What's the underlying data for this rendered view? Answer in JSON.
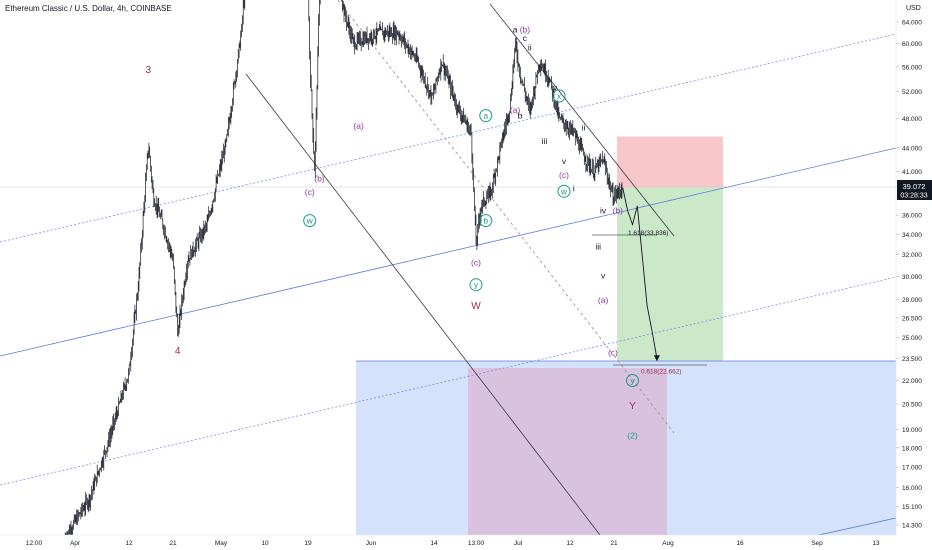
{
  "header": {
    "title": "Ethereum Classic / U.S. Dollar, 4h, COINBASE",
    "currency": "USD"
  },
  "price_marker": {
    "price": "39.072",
    "countdown": "03:28:33"
  },
  "colors": {
    "candle": "#131722",
    "channel_line": "#5b7ee0",
    "channel_dotted": "#7b8ee8",
    "trend_line": "#3a3a4a",
    "pink_dashed": "#c48a9a",
    "stop_zone": "#f8b8bd",
    "target_zone": "#b9e2b5",
    "target_box": "#c7d8fb",
    "overlap_box": "#d8bfdc",
    "wave_red": "#9c2d55",
    "wave_purple": "#8e3aa0",
    "wave_teal": "#1b9c88",
    "wave_black": "#131722",
    "price_tag": "#131722",
    "fib_text": "#9c2d55"
  },
  "chart_data": {
    "type": "candlestick",
    "title": "Ethereum Classic / U.S. Dollar, 4h, COINBASE",
    "y_axis": {
      "scale": "log",
      "unit": "USD",
      "ticks": [
        "64.000",
        "60.000",
        "56.000",
        "52.000",
        "48.000",
        "44.000",
        "41.000",
        "36.000",
        "34.000",
        "32.000",
        "30.000",
        "28.000",
        "26.500",
        "25.000",
        "23.500",
        "22.000",
        "20.500",
        "19.000",
        "18.000",
        "17.000",
        "16.000",
        "15.100",
        "14.300"
      ]
    },
    "x_axis": {
      "ticks": [
        "12:00",
        "Apr",
        "12",
        "21",
        "May",
        "10",
        "19",
        "Jun",
        "14",
        "13:00",
        "Jul",
        "12",
        "21",
        "Aug",
        "16",
        "Sep",
        "13"
      ]
    },
    "price_path": [
      {
        "date": "2021-03-30",
        "price": 13.8
      },
      {
        "date": "2021-04-04",
        "price": 15.5
      },
      {
        "date": "2021-04-08",
        "price": 18.5
      },
      {
        "date": "2021-04-12",
        "price": 22.5
      },
      {
        "date": "2021-04-14",
        "price": 29.5
      },
      {
        "date": "2021-04-16",
        "price": 44.5
      },
      {
        "date": "2021-04-17",
        "price": 38
      },
      {
        "date": "2021-04-19",
        "price": 35
      },
      {
        "date": "2021-04-21",
        "price": 31.5
      },
      {
        "date": "2021-04-22",
        "price": 25.3
      },
      {
        "date": "2021-04-24",
        "price": 31.5
      },
      {
        "date": "2021-04-28",
        "price": 35
      },
      {
        "date": "2021-05-02",
        "price": 45
      },
      {
        "date": "2021-05-05",
        "price": 62
      },
      {
        "date": "2021-05-07",
        "price": 90
      },
      {
        "date": "2021-05-12",
        "price": 120
      },
      {
        "date": "2021-05-18",
        "price": 110
      },
      {
        "date": "2021-05-19",
        "price": 57
      },
      {
        "date": "2021-05-20",
        "price": 41
      },
      {
        "date": "2021-05-21",
        "price": 70
      },
      {
        "date": "2021-05-24",
        "price": 80
      },
      {
        "date": "2021-05-26",
        "price": 66
      },
      {
        "date": "2021-05-28",
        "price": 60
      },
      {
        "date": "2021-06-02",
        "price": 62
      },
      {
        "date": "2021-06-06",
        "price": 62
      },
      {
        "date": "2021-06-10",
        "price": 57
      },
      {
        "date": "2021-06-13",
        "price": 51
      },
      {
        "date": "2021-06-15",
        "price": 57
      },
      {
        "date": "2021-06-18",
        "price": 50
      },
      {
        "date": "2021-06-21",
        "price": 46
      },
      {
        "date": "2021-06-22",
        "price": 33
      },
      {
        "date": "2021-06-23",
        "price": 37
      },
      {
        "date": "2021-06-25",
        "price": 38.5
      },
      {
        "date": "2021-06-27",
        "price": 44
      },
      {
        "date": "2021-06-29",
        "price": 50
      },
      {
        "date": "2021-06-30",
        "price": 60
      },
      {
        "date": "2021-07-01",
        "price": 55
      },
      {
        "date": "2021-07-03",
        "price": 49
      },
      {
        "date": "2021-07-05",
        "price": 57
      },
      {
        "date": "2021-07-07",
        "price": 54
      },
      {
        "date": "2021-07-09",
        "price": 48
      },
      {
        "date": "2021-07-12",
        "price": 46
      },
      {
        "date": "2021-07-14",
        "price": 43
      },
      {
        "date": "2021-07-16",
        "price": 41
      },
      {
        "date": "2021-07-18",
        "price": 42.5
      },
      {
        "date": "2021-07-20",
        "price": 38
      },
      {
        "date": "2021-07-21",
        "price": 38.5
      },
      {
        "date": "2021-07-22",
        "price": 39.07
      }
    ],
    "forecast_path": [
      {
        "date": "2021-07-22",
        "price": 39.07
      },
      {
        "date": "2021-07-23",
        "price": 36.5
      },
      {
        "date": "2021-07-24",
        "price": 35
      },
      {
        "date": "2021-07-25",
        "price": 37
      },
      {
        "date": "2021-07-27",
        "price": 27.5
      },
      {
        "date": "2021-07-28",
        "price": 25.5
      },
      {
        "date": "2021-07-29",
        "price": 23.5
      }
    ],
    "position": {
      "entry": 39.072,
      "stop": 45.5,
      "target": 23.3
    },
    "fib_levels": [
      {
        "label": "1.618(33.836)",
        "price": 33.836
      },
      {
        "label": "0.618(22.662)",
        "price": 22.662
      }
    ],
    "wave_labels": [
      {
        "text": "3",
        "color": "red",
        "date": "2021-04-16",
        "price": 55
      },
      {
        "text": "4",
        "color": "red",
        "date": "2021-04-22",
        "price": 23.8
      },
      {
        "text": "(c)",
        "color": "purple",
        "date": "2021-05-19",
        "price": 38.2
      },
      {
        "text": "(b)",
        "color": "purple",
        "date": "2021-05-21",
        "price": 39.8
      },
      {
        "text": "w",
        "color": "teal",
        "circled": true,
        "date": "2021-05-19",
        "price": 35.1
      },
      {
        "text": "(a)",
        "color": "purple",
        "date": "2021-05-29",
        "price": 46.5
      },
      {
        "text": "(b)",
        "color": "purple",
        "date": "2021-06-10",
        "price": 83
      },
      {
        "text": "a",
        "color": "teal",
        "circled": true,
        "date": "2021-06-24",
        "price": 48
      },
      {
        "text": "b",
        "color": "teal",
        "circled": true,
        "date": "2021-06-24",
        "price": 35.1
      },
      {
        "text": "(c)",
        "color": "purple",
        "date": "2021-06-22",
        "price": 31
      },
      {
        "text": "y",
        "color": "teal",
        "circled": true,
        "date": "2021-06-22",
        "price": 29
      },
      {
        "text": "W",
        "color": "red",
        "date": "2021-06-22",
        "price": 27.2
      },
      {
        "text": "c",
        "color": "teal",
        "circled": true,
        "date": "2021-06-29",
        "price": 84
      },
      {
        "text": "a",
        "color": "black",
        "date": "2021-06-30",
        "price": 62
      },
      {
        "text": "(b)",
        "color": "purple",
        "date": "2021-07-02",
        "price": 62
      },
      {
        "text": "c",
        "color": "black",
        "date": "2021-07-02",
        "price": 60.5
      },
      {
        "text": "ii",
        "color": "black",
        "date": "2021-07-03",
        "price": 58.8
      },
      {
        "text": "(a)",
        "color": "purple",
        "date": "2021-06-30",
        "price": 48.8
      },
      {
        "text": "b",
        "color": "black",
        "date": "2021-07-01",
        "price": 48
      },
      {
        "text": "i",
        "color": "black",
        "date": "2021-07-04",
        "price": 50.9
      },
      {
        "text": "iv",
        "color": "black",
        "date": "2021-07-08",
        "price": 52.2
      },
      {
        "text": "x",
        "color": "teal",
        "circled": true,
        "date": "2021-07-09",
        "price": 50.9
      },
      {
        "text": "iii",
        "color": "black",
        "date": "2021-07-06",
        "price": 44.5
      },
      {
        "text": "ii",
        "color": "black",
        "date": "2021-07-14",
        "price": 46.3
      },
      {
        "text": "v",
        "color": "black",
        "date": "2021-07-10",
        "price": 41.9
      },
      {
        "text": "(c)",
        "color": "purple",
        "date": "2021-07-10",
        "price": 40.2
      },
      {
        "text": "w",
        "color": "teal",
        "circled": true,
        "date": "2021-07-10",
        "price": 38.3
      },
      {
        "text": "i",
        "color": "black",
        "date": "2021-07-12",
        "price": 38.6
      },
      {
        "text": "iv",
        "color": "black",
        "date": "2021-07-18",
        "price": 36.2
      },
      {
        "text": "(b)",
        "color": "purple",
        "date": "2021-07-21",
        "price": 36.2
      },
      {
        "text": "iii",
        "color": "black",
        "date": "2021-07-17",
        "price": 32.5
      },
      {
        "text": "v",
        "color": "black",
        "date": "2021-07-18",
        "price": 29.8
      },
      {
        "text": "(a)",
        "color": "purple",
        "date": "2021-07-18",
        "price": 27.7
      },
      {
        "text": "(c)",
        "color": "purple",
        "date": "2021-07-20",
        "price": 23.7
      },
      {
        "text": "y",
        "color": "teal",
        "circled": true,
        "date": "2021-07-24",
        "price": 21.8
      },
      {
        "text": "Y",
        "color": "red",
        "date": "2021-07-24",
        "price": 20.2
      },
      {
        "text": "(2)",
        "color": "teal",
        "date": "2021-07-24",
        "price": 18.5
      }
    ]
  }
}
